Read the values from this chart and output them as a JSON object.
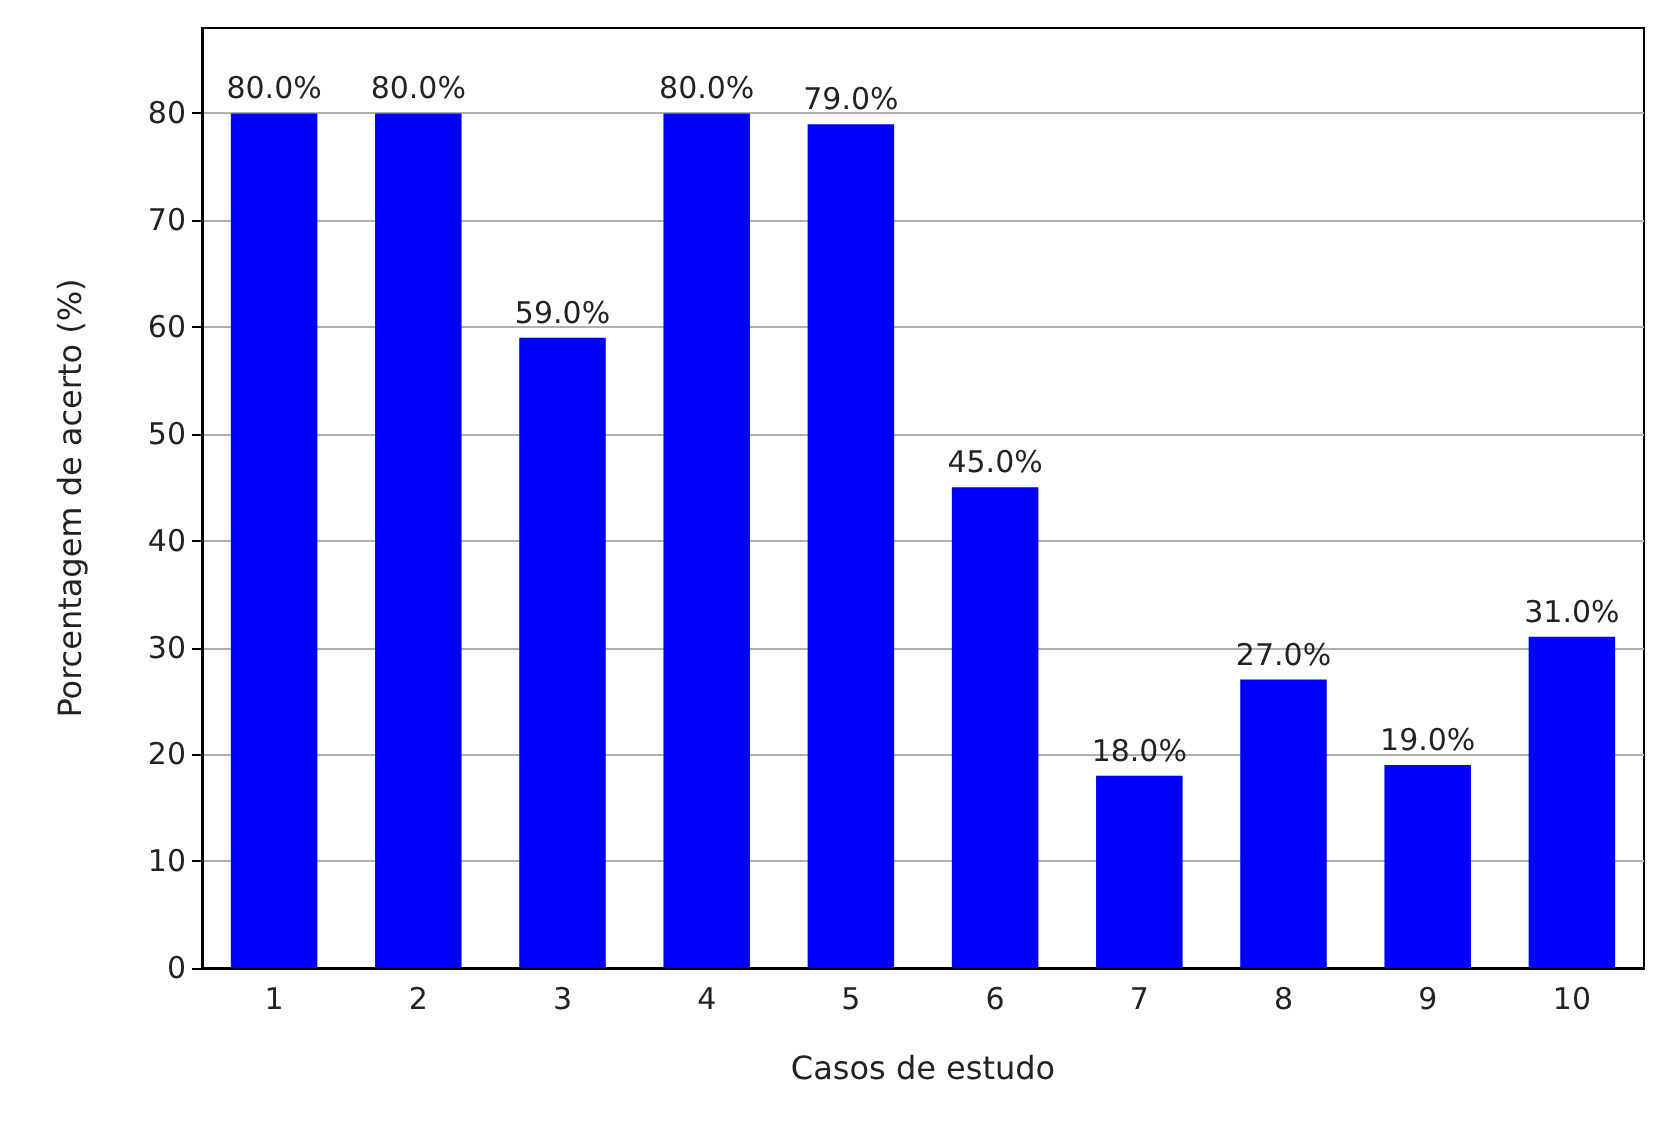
{
  "chart_data": {
    "type": "bar",
    "xlabel": "Casos de estudo",
    "ylabel": "Porcentagem de acerto (%)",
    "categories": [
      "1",
      "2",
      "3",
      "4",
      "5",
      "6",
      "7",
      "8",
      "9",
      "10"
    ],
    "values": [
      80,
      80,
      59,
      80,
      79,
      45,
      18,
      27,
      19,
      31
    ],
    "value_labels": [
      "80.0%",
      "80.0%",
      "59.0%",
      "80.0%",
      "79.0%",
      "45.0%",
      "18.0%",
      "27.0%",
      "19.0%",
      "31.0%"
    ],
    "color": "#0000ff",
    "ylim": [
      0,
      88
    ],
    "yticks": [
      0,
      10,
      20,
      30,
      40,
      50,
      60,
      70,
      80
    ],
    "grid": "y"
  }
}
